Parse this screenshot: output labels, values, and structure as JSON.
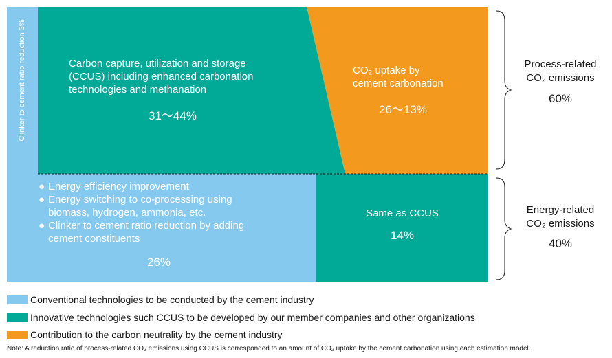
{
  "colors": {
    "conventional": "#85C9EE",
    "innovative": "#00AA96",
    "contribution": "#F39A1E"
  },
  "left_bar": {
    "label": "Clinker to cement ratio reduction 3%"
  },
  "ccus_block": {
    "lines": [
      "Carbon capture, utilization and storage",
      "(CCUS) including enhanced carbonation",
      "technologies and methanation"
    ],
    "percent": "31～44%"
  },
  "uptake_block": {
    "lines": [
      "CO₂ uptake by",
      "cement carbonation"
    ],
    "percent": "26～13%"
  },
  "conventional_block": {
    "bullet": "●",
    "items": [
      "Energy efficiency improvement",
      "Energy switching to co-processing using",
      "biomass, hydrogen, ammonia, etc.",
      "Clinker to cement ratio reduction by adding",
      "cement constituents"
    ],
    "percent": "26%"
  },
  "same_block": {
    "label": "Same as CCUS",
    "percent": "14%"
  },
  "process_group": {
    "lines": [
      "Process-related",
      "CO₂ emissions"
    ],
    "percent": "60%"
  },
  "energy_group": {
    "lines": [
      "Energy-related",
      "CO₂ emissions"
    ],
    "percent": "40%"
  },
  "legend": [
    {
      "label": "Conventional technologies to be conducted by the cement industry",
      "color": "#85C9EE"
    },
    {
      "label": "Innovative technologies such CCUS to be developed by our member companies and other organizations",
      "color": "#00AA96"
    },
    {
      "label": "Contribution to the carbon neutrality by the cement industry",
      "color": "#F39A1E"
    }
  ],
  "note": {
    "prefix": "Note: A reduction ratio of process-related CO",
    "sub1": "2",
    "middle": " emissions using CCUS is corresponded to an amount of CO",
    "sub2": "2",
    "suffix": " uptake by the cement carbonation using each estimation model."
  }
}
